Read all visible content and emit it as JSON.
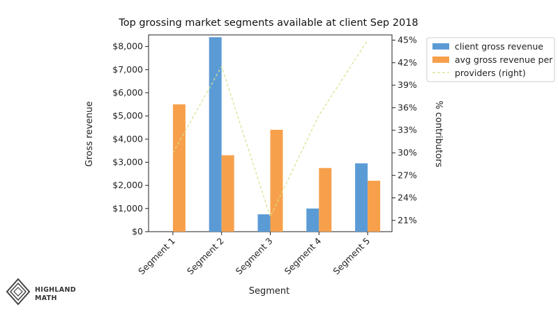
{
  "chart_data": {
    "type": "bar",
    "title": "Top grossing market segments available at client Sep 2018",
    "xlabel": "Segment",
    "ylabel": "Gross revenue",
    "y2label": "% contributors",
    "categories": [
      "Segment 1",
      "Segment 2",
      "Segment 3",
      "Segment 4",
      "Segment 5"
    ],
    "ylim": [
      0,
      8500
    ],
    "y_ticks": [
      0,
      1000,
      2000,
      3000,
      4000,
      5000,
      6000,
      7000,
      8000
    ],
    "y_tick_labels": [
      "$0",
      "$1,000",
      "$2,000",
      "$3,000",
      "$4,000",
      "$5,000",
      "$6,000",
      "$7,000",
      "$8,000"
    ],
    "y2lim": [
      19.5,
      45.7
    ],
    "y2_ticks": [
      21,
      24,
      27,
      30,
      33,
      36,
      39,
      42,
      45
    ],
    "y2_tick_labels": [
      "21%",
      "24%",
      "27%",
      "30%",
      "33%",
      "36%",
      "39%",
      "42%",
      "45%"
    ],
    "series": [
      {
        "name": "client gross revenue",
        "kind": "bar",
        "color": "#5b9bd5",
        "values": [
          0,
          8400,
          750,
          1000,
          2950
        ]
      },
      {
        "name": "avg gross revenue per",
        "kind": "bar",
        "color": "#f7a04b",
        "values": [
          5500,
          3300,
          4400,
          2750,
          2200
        ]
      },
      {
        "name": "providers (right)",
        "kind": "line",
        "axis": "right",
        "color": "#d8e08a",
        "dashed": true,
        "values": [
          30,
          41.5,
          21.5,
          35,
          45
        ]
      }
    ],
    "legend": "top-right",
    "grid": false
  },
  "logo": {
    "line1": "HIGHLAND",
    "line2": "MATH"
  }
}
